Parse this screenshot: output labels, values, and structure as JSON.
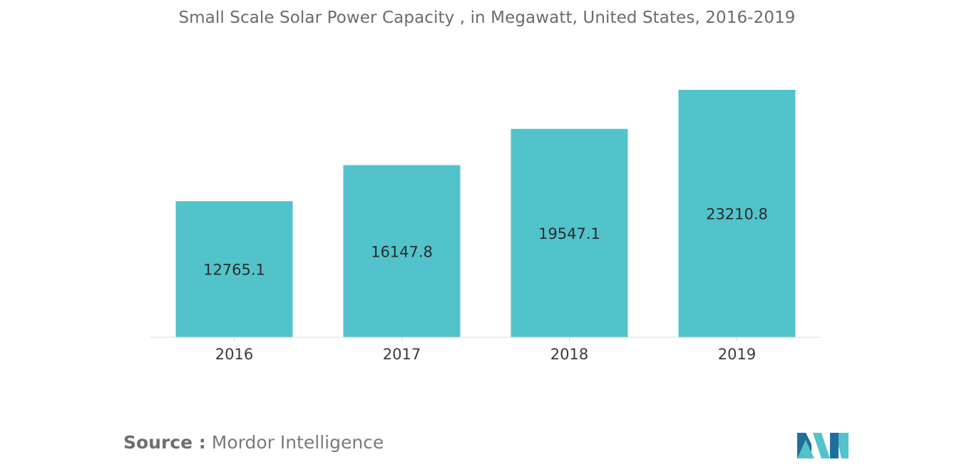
{
  "chart_data": {
    "type": "bar",
    "title": "Small Scale Solar Power Capacity , in Megawatt, United States, 2016-2019",
    "categories": [
      "2016",
      "2017",
      "2018",
      "2019"
    ],
    "values": [
      12765.1,
      16147.8,
      19547.1,
      23210.8
    ],
    "value_labels": [
      "12765.1",
      "16147.8",
      "19547.1",
      "23210.8"
    ],
    "xlabel": "",
    "ylabel": "",
    "ylim": [
      0,
      23210.8
    ],
    "grid": false,
    "legend": "none",
    "bar_color": "#52c3ca"
  },
  "source": {
    "label": "Source :",
    "text": "Mordor Intelligence"
  },
  "brand": {
    "logo_icon": "mordor-intelligence-logo-icon",
    "colors": [
      "#1f6e9c",
      "#52c3ca"
    ]
  }
}
